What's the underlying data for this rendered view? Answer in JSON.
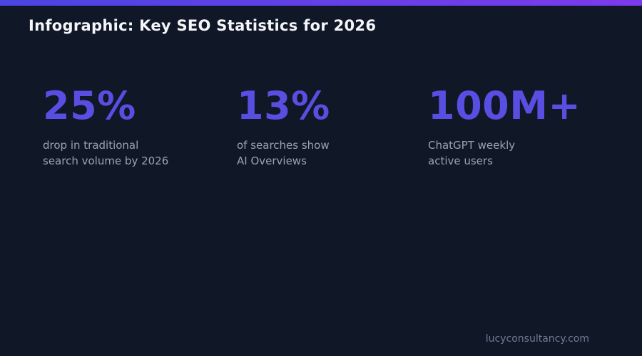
{
  "page": {
    "title": "Infographic: Key SEO Statistics for 2026",
    "footer": "lucyconsultancy.com"
  },
  "theme": {
    "background": "#101726",
    "top_bar_gradient_start": "#4a45e2",
    "top_bar_gradient_end": "#7c3aed",
    "title_color": "#f4f6fa",
    "stat_value_color": "#584ee2",
    "stat_label_color": "#9aa3b1",
    "footer_color": "#6f7b94"
  },
  "stats": [
    {
      "value": "25%",
      "label_line1": "drop in traditional",
      "label_line2": "search volume by 2026"
    },
    {
      "value": "13%",
      "label_line1": "of searches show",
      "label_line2": "AI Overviews"
    },
    {
      "value": "100M+",
      "label_line1": "ChatGPT weekly",
      "label_line2": "active users"
    }
  ],
  "chart_data": {
    "type": "table",
    "title": "Infographic: Key SEO Statistics for 2026",
    "stats": [
      {
        "display_value": "25%",
        "numeric": 25,
        "description": "drop in traditional search volume by 2026"
      },
      {
        "display_value": "13%",
        "numeric": 13,
        "description": "of searches show AI Overviews"
      },
      {
        "display_value": "100M+",
        "numeric": 100000000,
        "description": "ChatGPT weekly active users"
      }
    ]
  }
}
